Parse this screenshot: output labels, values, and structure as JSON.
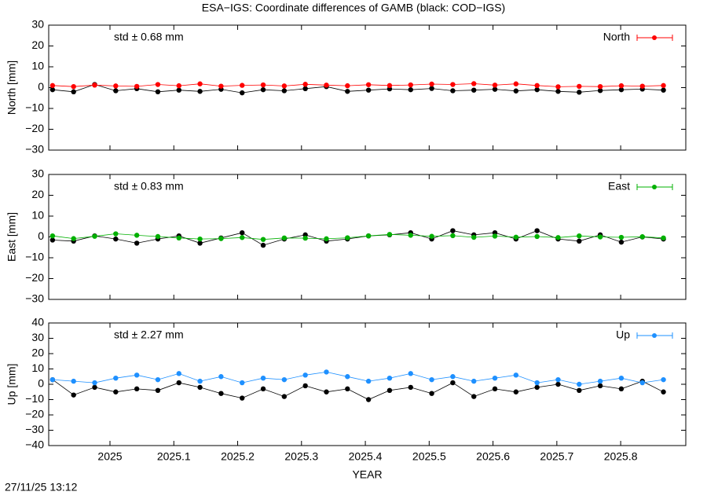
{
  "title": "ESA−IGS: Coordinate differences of GAMB (black: COD−IGS)",
  "timestamp": "27/11/25 13:12",
  "chart_data": [
    {
      "type": "line",
      "ylabel": "North [mm]",
      "annotation": "std ± 0.68 mm",
      "annotation_color": "#ff0000",
      "xlim": [
        2024.904,
        2025.902
      ],
      "ylim": [
        -30,
        30
      ],
      "yticks": [
        30,
        20,
        10,
        0,
        {
          "value": -10,
          "label": "−10"
        },
        {
          "value": -20,
          "label": "−20"
        },
        {
          "value": -30,
          "label": "−30"
        }
      ],
      "x": [
        2024.91,
        2024.943,
        2024.976,
        2025.009,
        2025.042,
        2025.075,
        2025.108,
        2025.141,
        2025.174,
        2025.207,
        2025.24,
        2025.273,
        2025.306,
        2025.339,
        2025.372,
        2025.405,
        2025.438,
        2025.471,
        2025.504,
        2025.537,
        2025.57,
        2025.603,
        2025.636,
        2025.669,
        2025.702,
        2025.735,
        2025.768,
        2025.801,
        2025.834,
        2025.867
      ],
      "series": [
        {
          "color": "#000000",
          "values": [
            -1,
            -2,
            1.5,
            -1.5,
            -0.5,
            -2,
            -1.2,
            -1.8,
            -0.8,
            -2.5,
            -1,
            -1.5,
            -0.5,
            0.5,
            -1.8,
            -1.2,
            -0.6,
            -1,
            -0.4,
            -1.5,
            -1.2,
            -0.8,
            -1.6,
            -1,
            -1.8,
            -2.2,
            -1.4,
            -1,
            -0.7,
            -1.2
          ]
        },
        {
          "name": "North",
          "color": "#ff0000",
          "values": [
            1,
            0.5,
            1.2,
            0.8,
            0.6,
            1.5,
            0.9,
            1.8,
            0.7,
            1.1,
            1.3,
            0.8,
            1.6,
            1.2,
            0.9,
            1.4,
            1.0,
            1.3,
            1.7,
            1.5,
            1.9,
            1.2,
            1.8,
            1.0,
            0.4,
            0.6,
            0.5,
            0.9,
            0.7,
            1.0
          ]
        }
      ]
    },
    {
      "type": "line",
      "ylabel": "East [mm]",
      "annotation": "std ± 0.83 mm",
      "annotation_color": "#00b000",
      "xlim": [
        2024.904,
        2025.902
      ],
      "ylim": [
        -30,
        30
      ],
      "yticks": [
        30,
        20,
        10,
        0,
        {
          "value": -10,
          "label": "−10"
        },
        {
          "value": -20,
          "label": "−20"
        },
        {
          "value": -30,
          "label": "−30"
        }
      ],
      "x": [
        2024.91,
        2024.943,
        2024.976,
        2025.009,
        2025.042,
        2025.075,
        2025.108,
        2025.141,
        2025.174,
        2025.207,
        2025.24,
        2025.273,
        2025.306,
        2025.339,
        2025.372,
        2025.405,
        2025.438,
        2025.471,
        2025.504,
        2025.537,
        2025.57,
        2025.603,
        2025.636,
        2025.669,
        2025.702,
        2025.735,
        2025.768,
        2025.801,
        2025.834,
        2025.867
      ],
      "series": [
        {
          "color": "#000000",
          "values": [
            -1.5,
            -2,
            0.5,
            -1,
            -3,
            -1,
            0.5,
            -3,
            -0.5,
            2,
            -4,
            -1,
            1,
            -2,
            -1,
            0.5,
            1,
            2,
            -1,
            3,
            1,
            2,
            -1,
            3,
            -1,
            -2,
            1,
            -2.5,
            0,
            -1
          ]
        },
        {
          "name": "East",
          "color": "#00b000",
          "values": [
            0.5,
            -0.8,
            0.3,
            1.5,
            0.8,
            0.2,
            -0.5,
            -1,
            -0.8,
            -0.3,
            -1.2,
            -0.5,
            -0.6,
            -0.9,
            -0.4,
            0.5,
            1.2,
            0.8,
            0.3,
            0.6,
            -0.2,
            0.4,
            -0.1,
            0.2,
            -0.3,
            0.5,
            0,
            -0.2,
            0.1,
            -0.5
          ]
        }
      ]
    },
    {
      "type": "line",
      "ylabel": "Up [mm]",
      "annotation": "std ± 2.27 mm",
      "annotation_color": "#1e90ff",
      "xlabel": "YEAR",
      "xlim": [
        2024.904,
        2025.902
      ],
      "ylim": [
        -40,
        40
      ],
      "xticks": [
        2025,
        2025.1,
        2025.2,
        2025.3,
        2025.4,
        2025.5,
        2025.6,
        2025.7,
        2025.8
      ],
      "yticks": [
        40,
        30,
        20,
        10,
        0,
        {
          "value": -10,
          "label": "−10"
        },
        {
          "value": -20,
          "label": "−20"
        },
        {
          "value": -30,
          "label": "−30"
        },
        {
          "value": -40,
          "label": "−40"
        }
      ],
      "x": [
        2024.91,
        2024.943,
        2024.976,
        2025.009,
        2025.042,
        2025.075,
        2025.108,
        2025.141,
        2025.174,
        2025.207,
        2025.24,
        2025.273,
        2025.306,
        2025.339,
        2025.372,
        2025.405,
        2025.438,
        2025.471,
        2025.504,
        2025.537,
        2025.57,
        2025.603,
        2025.636,
        2025.669,
        2025.702,
        2025.735,
        2025.768,
        2025.801,
        2025.834,
        2025.867
      ],
      "series": [
        {
          "color": "#000000",
          "values": [
            3,
            -7,
            -2,
            -5,
            -3,
            -4,
            1,
            -2,
            -6,
            -9,
            -3,
            -8,
            -1,
            -5,
            -3,
            -10,
            -4,
            -2,
            -6,
            1,
            -8,
            -3,
            -5,
            -2,
            0,
            -4,
            -1,
            -3,
            2,
            -5
          ]
        },
        {
          "name": "Up",
          "color": "#1e90ff",
          "values": [
            3,
            2,
            1,
            4,
            6,
            3,
            7,
            2,
            5,
            1,
            4,
            3,
            6,
            8,
            5,
            2,
            4,
            7,
            3,
            5,
            2,
            4,
            6,
            1,
            3,
            0,
            2,
            4,
            1,
            3
          ]
        }
      ]
    }
  ]
}
